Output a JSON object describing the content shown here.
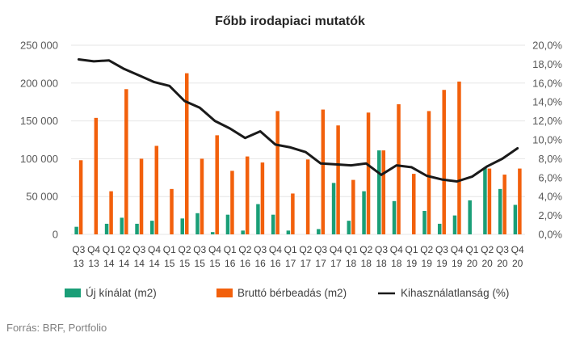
{
  "chart_data": {
    "type": "bar",
    "title": "Főbb irodapiaci mutatók",
    "source": "Forrás: BRF, Portfolio",
    "categories": [
      [
        "Q3",
        "13"
      ],
      [
        "Q4",
        "13"
      ],
      [
        "Q1",
        "14"
      ],
      [
        "Q2",
        "14"
      ],
      [
        "Q3",
        "14"
      ],
      [
        "Q4",
        "14"
      ],
      [
        "Q1",
        "15"
      ],
      [
        "Q2",
        "15"
      ],
      [
        "Q3",
        "15"
      ],
      [
        "Q4",
        "15"
      ],
      [
        "Q1",
        "16"
      ],
      [
        "Q2",
        "16"
      ],
      [
        "Q3",
        "16"
      ],
      [
        "Q4",
        "16"
      ],
      [
        "Q1",
        "17"
      ],
      [
        "Q2",
        "17"
      ],
      [
        "Q3",
        "17"
      ],
      [
        "Q4",
        "17"
      ],
      [
        "Q1",
        "18"
      ],
      [
        "Q2",
        "18"
      ],
      [
        "Q3",
        "18"
      ],
      [
        "Q4",
        "18"
      ],
      [
        "Q1",
        "19"
      ],
      [
        "Q2",
        "19"
      ],
      [
        "Q3",
        "19"
      ],
      [
        "Q4",
        "19"
      ],
      [
        "Q1",
        "20"
      ],
      [
        "Q2",
        "20"
      ],
      [
        "Q3",
        "20"
      ],
      [
        "Q4",
        "20"
      ]
    ],
    "y_left": {
      "min": 0,
      "max": 250000,
      "step": 50000,
      "tick_labels": [
        "0",
        "50 000",
        "100 000",
        "150 000",
        "200 000",
        "250 000"
      ]
    },
    "y_right": {
      "min": 0,
      "max": 20,
      "step": 2,
      "tick_labels": [
        "0,0%",
        "2,0%",
        "4,0%",
        "6,0%",
        "8,0%",
        "10,0%",
        "12,0%",
        "14,0%",
        "16,0%",
        "18,0%",
        "20,0%"
      ]
    },
    "series": [
      {
        "name": "Új kínálat (m2)",
        "type": "bar",
        "axis": "left",
        "color": "#1a9e77",
        "values": [
          10000,
          0,
          14000,
          22000,
          14000,
          18000,
          0,
          21000,
          28000,
          3000,
          26000,
          5000,
          40000,
          26000,
          5000,
          0,
          7000,
          68000,
          18000,
          57000,
          111000,
          44000,
          0,
          31000,
          14000,
          25000,
          45000,
          88000,
          60000,
          39000
        ]
      },
      {
        "name": "Bruttó bérbeadás (m2)",
        "type": "bar",
        "axis": "left",
        "color": "#f2600c",
        "values": [
          98000,
          154000,
          57000,
          192000,
          100000,
          117000,
          60000,
          213000,
          100000,
          131000,
          84000,
          103000,
          95000,
          163000,
          54000,
          99000,
          165000,
          144000,
          72000,
          161000,
          111000,
          172000,
          80000,
          163000,
          191000,
          202000,
          0,
          87000,
          79000,
          87000
        ]
      },
      {
        "name": "Kihasználatlanság (%)",
        "type": "line",
        "axis": "right",
        "color": "#1a1a1a",
        "values": [
          18.5,
          18.3,
          18.4,
          17.5,
          16.8,
          16.1,
          15.7,
          14.1,
          13.4,
          12.0,
          11.2,
          10.2,
          10.9,
          9.5,
          9.2,
          8.7,
          7.5,
          7.4,
          7.3,
          7.5,
          6.3,
          7.3,
          7.1,
          6.2,
          5.8,
          5.6,
          6.1,
          7.2,
          8.0,
          9.1
        ]
      }
    ],
    "grid": true,
    "legend_position": "bottom"
  }
}
